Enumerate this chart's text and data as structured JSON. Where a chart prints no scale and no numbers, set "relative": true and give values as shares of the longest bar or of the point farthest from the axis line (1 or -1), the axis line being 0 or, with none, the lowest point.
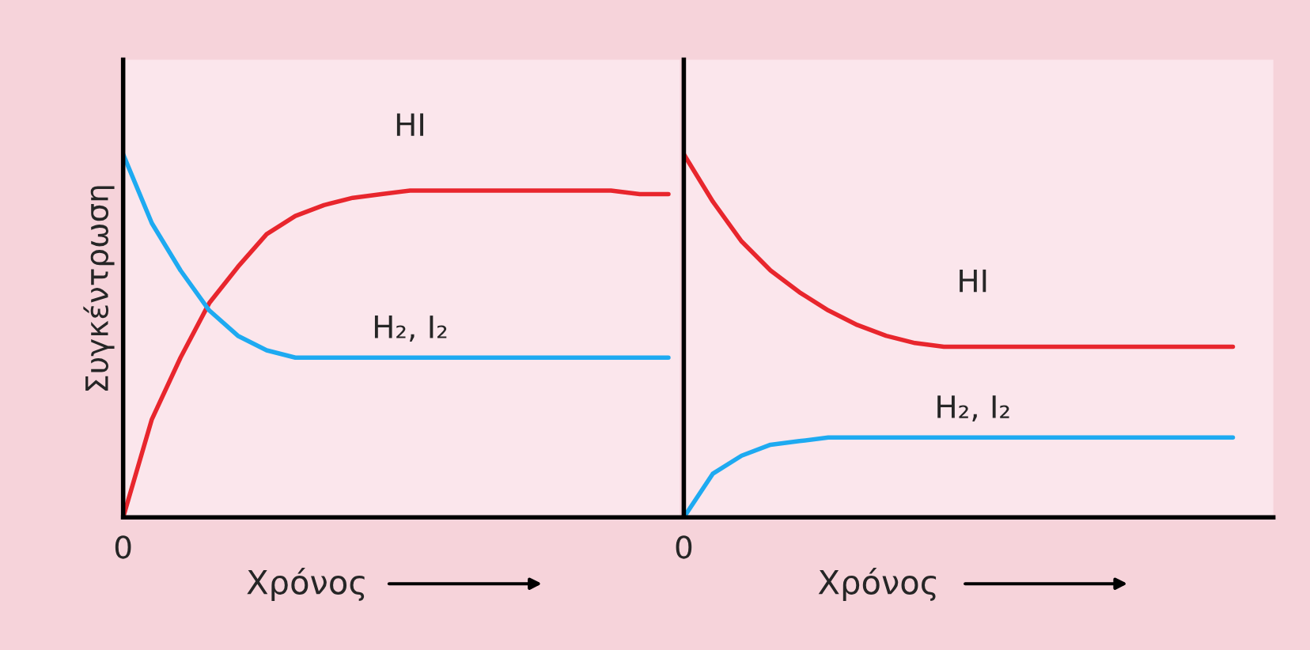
{
  "chart_data": [
    {
      "type": "line",
      "relative": true,
      "ylabel": "Συγκέντρωση",
      "xlabel": "Χρόνος",
      "legend": false,
      "marker": "none",
      "line_style": "solid",
      "annotations": [
        "0"
      ],
      "categories": [
        null,
        null,
        null,
        null,
        null,
        null,
        null,
        null,
        null,
        null,
        null,
        null,
        null,
        null,
        null,
        null,
        null,
        null,
        null,
        null
      ],
      "series": [
        {
          "name": "HI",
          "color": "#e8262d",
          "values": [
            0,
            0.27,
            0.44,
            0.59,
            0.69,
            0.78,
            0.83,
            0.86,
            0.88,
            0.89,
            0.9,
            0.9,
            0.9,
            0.9,
            0.9,
            0.9,
            0.9,
            0.9,
            0.89,
            0.89
          ]
        },
        {
          "name": "H₂, I₂",
          "color": "#1eaaf1",
          "values": [
            1,
            0.81,
            0.68,
            0.57,
            0.5,
            0.46,
            0.44,
            0.44,
            0.44,
            0.44,
            0.44,
            0.44,
            0.44,
            0.44,
            0.44,
            0.44,
            0.44,
            0.44,
            0.44,
            0.44
          ]
        }
      ]
    },
    {
      "type": "line",
      "relative": true,
      "xlabel": "Χρόνος",
      "legend": false,
      "marker": "none",
      "line_style": "solid",
      "annotations": [
        "0"
      ],
      "categories": [
        null,
        null,
        null,
        null,
        null,
        null,
        null,
        null,
        null,
        null,
        null,
        null,
        null,
        null,
        null,
        null,
        null,
        null,
        null,
        null,
        null
      ],
      "series": [
        {
          "name": "HI",
          "color": "#e8262d",
          "values": [
            1,
            0.87,
            0.76,
            0.68,
            0.62,
            0.57,
            0.53,
            0.5,
            0.48,
            0.47,
            0.47,
            0.47,
            0.47,
            0.47,
            0.47,
            0.47,
            0.47,
            0.47,
            0.47,
            0.47,
            null
          ]
        },
        {
          "name": "H₂, I₂",
          "color": "#1eaaf1",
          "values": [
            0,
            0.12,
            0.17,
            0.2,
            0.21,
            0.22,
            0.22,
            0.22,
            0.22,
            0.22,
            0.22,
            0.22,
            0.22,
            0.22,
            0.22,
            0.22,
            0.22,
            0.22,
            0.22,
            0.22,
            null
          ]
        }
      ]
    }
  ]
}
